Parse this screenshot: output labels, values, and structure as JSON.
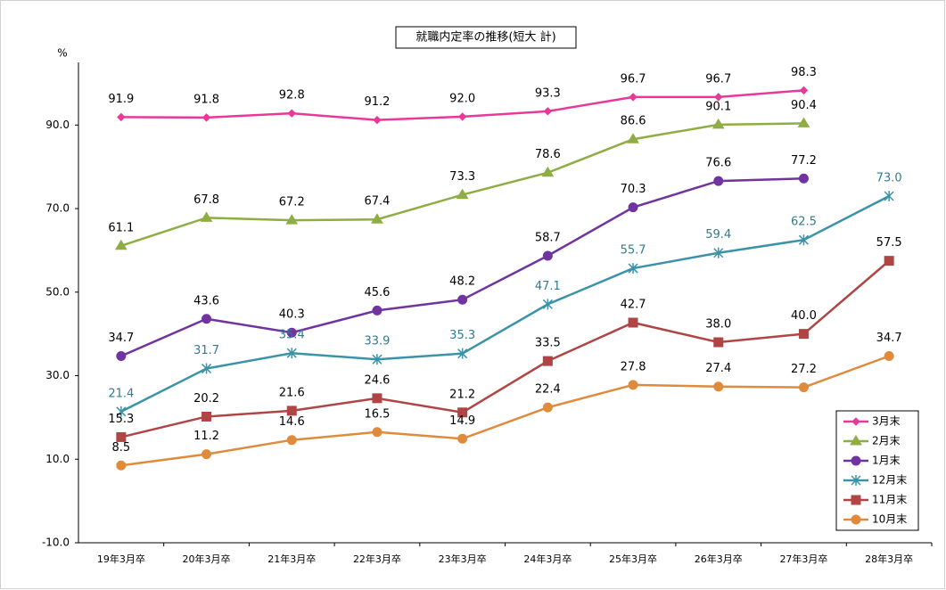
{
  "chart_data": {
    "type": "line",
    "title": "就職内定率の推移(短大 計)",
    "y_unit": "%",
    "categories": [
      "19年3月卒",
      "20年3月卒",
      "21年3月卒",
      "22年3月卒",
      "23年3月卒",
      "24年3月卒",
      "25年3月卒",
      "26年3月卒",
      "27年3月卒",
      "28年3月卒"
    ],
    "ylim": [
      -10,
      105
    ],
    "yticks": [
      {
        "value": -10,
        "label": "-10.0"
      },
      {
        "value": 10,
        "label": "10.0"
      },
      {
        "value": 30,
        "label": "30.0"
      },
      {
        "value": 50,
        "label": "50.0"
      },
      {
        "value": 70,
        "label": "70.0"
      },
      {
        "value": 90,
        "label": "90.0"
      }
    ],
    "legend": "lower right",
    "series": [
      {
        "name": "3月末",
        "color": "#e8399a",
        "marker": "diamond",
        "label_color": "#000000",
        "values": [
          91.9,
          91.8,
          92.8,
          91.2,
          92.0,
          93.3,
          96.7,
          96.7,
          98.3,
          null
        ],
        "value_labels": [
          "91.9",
          "91.8",
          "92.8",
          "91.2",
          "92.0",
          "93.3",
          "96.7",
          "96.7",
          "98.3",
          null
        ]
      },
      {
        "name": "2月末",
        "color": "#8fad45",
        "marker": "triangle",
        "label_color": "#000000",
        "values": [
          61.1,
          67.8,
          67.2,
          67.4,
          73.3,
          78.6,
          86.6,
          90.1,
          90.4,
          null
        ],
        "value_labels": [
          "61.1",
          "67.8",
          "67.2",
          "67.4",
          "73.3",
          "78.6",
          "86.6",
          "90.1",
          "90.4",
          null
        ]
      },
      {
        "name": "1月末",
        "color": "#7034a0",
        "marker": "circle",
        "label_color": "#000000",
        "values": [
          34.7,
          43.6,
          40.3,
          45.6,
          48.2,
          58.7,
          70.3,
          76.6,
          77.2,
          null
        ],
        "value_labels": [
          "34.7",
          "43.6",
          "40.3",
          "45.6",
          "48.2",
          "58.7",
          "70.3",
          "76.6",
          "77.2",
          null
        ]
      },
      {
        "name": "12月末",
        "color": "#3a93a8",
        "marker": "star",
        "label_color": "#2e7c90",
        "values": [
          21.4,
          31.7,
          35.4,
          33.9,
          35.3,
          47.1,
          55.7,
          59.4,
          62.5,
          73.0
        ],
        "value_labels": [
          "21.4",
          "31.7",
          "35.4",
          "33.9",
          "35.3",
          "47.1",
          "55.7",
          "59.4",
          "62.5",
          "73.0"
        ]
      },
      {
        "name": "11月末",
        "color": "#b04545",
        "marker": "square",
        "label_color": "#000000",
        "values": [
          15.3,
          20.2,
          21.6,
          24.6,
          21.2,
          33.5,
          42.7,
          38.0,
          40.0,
          57.5
        ],
        "value_labels": [
          "15.3",
          "20.2",
          "21.6",
          "24.6",
          "21.2",
          "33.5",
          "42.7",
          "38.0",
          "40.0",
          "57.5"
        ]
      },
      {
        "name": "10月末",
        "color": "#e08a3c",
        "marker": "circle",
        "label_color": "#000000",
        "values": [
          8.5,
          11.2,
          14.6,
          16.5,
          14.9,
          22.4,
          27.8,
          27.4,
          27.2,
          34.7
        ],
        "value_labels": [
          "8.5",
          "11.2",
          "14.6",
          "16.5",
          "14.9",
          "22.4",
          "27.8",
          "27.4",
          "27.2",
          "34.7"
        ]
      }
    ]
  }
}
